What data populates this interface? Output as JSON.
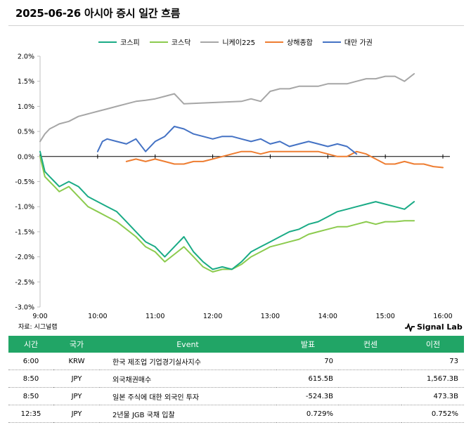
{
  "header": {
    "title": "2025-06-26 아시아 증시 일간 흐름"
  },
  "source_note": "자료: 시그널랩",
  "brand": {
    "name": "Signal Lab"
  },
  "chart_data": {
    "type": "line",
    "ylim": [
      -3.0,
      2.0
    ],
    "yticks": [
      2.0,
      1.5,
      1.0,
      0.5,
      0.0,
      -0.5,
      -1.0,
      -1.5,
      -2.0,
      -2.5,
      -3.0
    ],
    "ytick_labels": [
      "2.0%",
      "1.5%",
      "1.0%",
      "0.5%",
      "0.0%",
      "-0.5%",
      "-1.0%",
      "-1.5%",
      "-2.0%",
      "-2.5%",
      "-3.0%"
    ],
    "xlim": [
      "9:00",
      "16:00"
    ],
    "xtick_labels": [
      "9:00",
      "10:00",
      "11:00",
      "12:00",
      "13:00",
      "14:00",
      "15:00",
      "16:00"
    ],
    "legend_position": "top",
    "series": [
      {
        "name": "코스피",
        "color": "#1aab86",
        "x": [
          "9:00",
          "9:05",
          "9:10",
          "9:15",
          "9:20",
          "9:30",
          "9:40",
          "9:50",
          "10:00",
          "10:10",
          "10:20",
          "10:30",
          "10:40",
          "10:50",
          "11:00",
          "11:10",
          "11:20",
          "11:30",
          "11:40",
          "11:50",
          "12:00",
          "12:10",
          "12:20",
          "12:30",
          "12:40",
          "12:50",
          "13:00",
          "13:10",
          "13:20",
          "13:30",
          "13:40",
          "13:50",
          "14:00",
          "14:10",
          "14:20",
          "14:30",
          "14:40",
          "14:50",
          "15:00",
          "15:10",
          "15:20",
          "15:30"
        ],
        "y": [
          0.1,
          -0.3,
          -0.4,
          -0.5,
          -0.6,
          -0.5,
          -0.6,
          -0.8,
          -0.9,
          -1.0,
          -1.1,
          -1.3,
          -1.5,
          -1.7,
          -1.8,
          -2.0,
          -1.8,
          -1.6,
          -1.9,
          -2.1,
          -2.25,
          -2.2,
          -2.25,
          -2.1,
          -1.9,
          -1.8,
          -1.7,
          -1.6,
          -1.5,
          -1.45,
          -1.35,
          -1.3,
          -1.2,
          -1.1,
          -1.05,
          -1.0,
          -0.95,
          -0.9,
          -0.95,
          -1.0,
          -1.05,
          -0.9
        ]
      },
      {
        "name": "코스닥",
        "color": "#8ccb4e",
        "x": [
          "9:00",
          "9:05",
          "9:10",
          "9:15",
          "9:20",
          "9:30",
          "9:40",
          "9:50",
          "10:00",
          "10:10",
          "10:20",
          "10:30",
          "10:40",
          "10:50",
          "11:00",
          "11:10",
          "11:20",
          "11:30",
          "11:40",
          "11:50",
          "12:00",
          "12:10",
          "12:20",
          "12:30",
          "12:40",
          "12:50",
          "13:00",
          "13:10",
          "13:20",
          "13:30",
          "13:40",
          "13:50",
          "14:00",
          "14:10",
          "14:20",
          "14:30",
          "14:40",
          "14:50",
          "15:00",
          "15:10",
          "15:20",
          "15:30"
        ],
        "y": [
          0.0,
          -0.4,
          -0.5,
          -0.6,
          -0.7,
          -0.6,
          -0.8,
          -1.0,
          -1.1,
          -1.2,
          -1.3,
          -1.45,
          -1.6,
          -1.8,
          -1.9,
          -2.1,
          -1.95,
          -1.8,
          -2.0,
          -2.2,
          -2.3,
          -2.25,
          -2.25,
          -2.15,
          -2.0,
          -1.9,
          -1.8,
          -1.75,
          -1.7,
          -1.65,
          -1.55,
          -1.5,
          -1.45,
          -1.4,
          -1.4,
          -1.35,
          -1.3,
          -1.35,
          -1.3,
          -1.3,
          -1.28,
          -1.28
        ]
      },
      {
        "name": "니케이225",
        "color": "#a6a6a6",
        "x": [
          "9:00",
          "9:05",
          "9:10",
          "9:15",
          "9:20",
          "9:30",
          "9:40",
          "9:50",
          "10:00",
          "10:10",
          "10:20",
          "10:30",
          "10:40",
          "10:50",
          "11:00",
          "11:10",
          "11:20",
          "11:30",
          "12:30",
          "12:40",
          "12:50",
          "13:00",
          "13:10",
          "13:20",
          "13:30",
          "13:40",
          "13:50",
          "14:00",
          "14:10",
          "14:20",
          "14:30",
          "14:40",
          "14:50",
          "15:00",
          "15:10",
          "15:20",
          "15:30"
        ],
        "y": [
          0.3,
          0.45,
          0.55,
          0.6,
          0.65,
          0.7,
          0.8,
          0.85,
          0.9,
          0.95,
          1.0,
          1.05,
          1.1,
          1.12,
          1.15,
          1.2,
          1.25,
          1.05,
          1.1,
          1.15,
          1.1,
          1.3,
          1.35,
          1.35,
          1.4,
          1.4,
          1.4,
          1.45,
          1.45,
          1.45,
          1.5,
          1.55,
          1.55,
          1.6,
          1.6,
          1.5,
          1.65
        ]
      },
      {
        "name": "상해종합",
        "color": "#ee7d31",
        "x": [
          "10:30",
          "10:40",
          "10:50",
          "11:00",
          "11:10",
          "11:20",
          "11:30",
          "11:40",
          "11:50",
          "12:00",
          "12:10",
          "12:20",
          "12:30",
          "12:40",
          "12:50",
          "13:00",
          "13:10",
          "13:20",
          "13:30",
          "13:40",
          "13:50",
          "14:00",
          "14:10",
          "14:20",
          "14:30",
          "14:40",
          "14:50",
          "15:00",
          "15:10",
          "15:20",
          "15:30",
          "15:40",
          "15:50",
          "16:00"
        ],
        "y": [
          -0.1,
          -0.05,
          -0.1,
          -0.05,
          -0.1,
          -0.15,
          -0.15,
          -0.1,
          -0.1,
          -0.05,
          0.0,
          0.05,
          0.1,
          0.1,
          0.05,
          0.1,
          0.1,
          0.1,
          0.1,
          0.1,
          0.1,
          0.05,
          0.0,
          0.0,
          0.1,
          0.05,
          -0.05,
          -0.15,
          -0.15,
          -0.1,
          -0.15,
          -0.15,
          -0.2,
          -0.22
        ]
      },
      {
        "name": "대만 가권",
        "color": "#4472c4",
        "x": [
          "10:00",
          "10:05",
          "10:10",
          "10:20",
          "10:30",
          "10:40",
          "10:50",
          "11:00",
          "11:10",
          "11:20",
          "11:30",
          "11:40",
          "11:50",
          "12:00",
          "12:10",
          "12:20",
          "12:30",
          "12:40",
          "12:50",
          "13:00",
          "13:10",
          "13:20",
          "13:30",
          "13:40",
          "13:50",
          "14:00",
          "14:10",
          "14:20",
          "14:30"
        ],
        "y": [
          0.1,
          0.3,
          0.35,
          0.3,
          0.25,
          0.35,
          0.1,
          0.3,
          0.4,
          0.6,
          0.55,
          0.45,
          0.4,
          0.35,
          0.4,
          0.4,
          0.35,
          0.3,
          0.35,
          0.25,
          0.3,
          0.2,
          0.25,
          0.3,
          0.25,
          0.2,
          0.25,
          0.2,
          0.05
        ]
      }
    ]
  },
  "table": {
    "headers": [
      "시간",
      "국가",
      "Event",
      "발표",
      "컨센",
      "이전"
    ],
    "rows": [
      [
        "6:00",
        "KRW",
        "한국 제조업 기업경기실사지수",
        "70",
        "",
        "73"
      ],
      [
        "8:50",
        "JPY",
        "외국채권매수",
        "615.5B",
        "",
        "1,567.3B"
      ],
      [
        "8:50",
        "JPY",
        "일본 주식에 대한 외국인 투자",
        "-524.3B",
        "",
        "473.3B"
      ],
      [
        "12:35",
        "JPY",
        "2년물 JGB 국채 입찰",
        "0.729%",
        "",
        "0.752%"
      ]
    ]
  }
}
